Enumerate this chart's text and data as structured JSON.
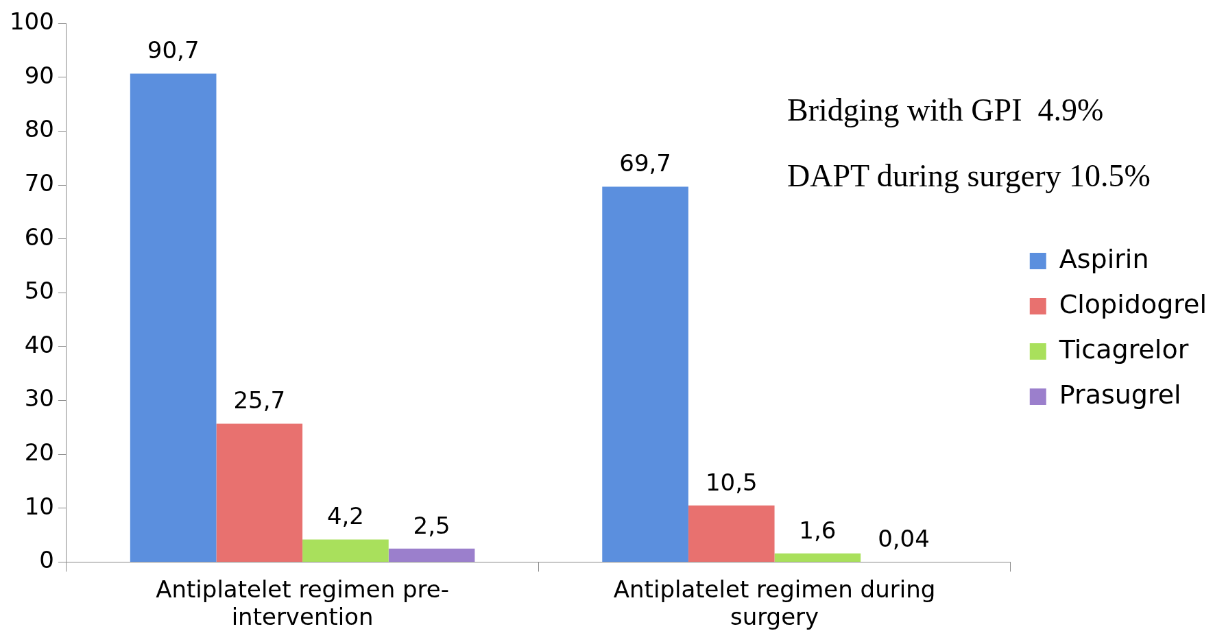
{
  "chart_data": {
    "type": "bar",
    "categories": [
      "Antiplatelet regimen pre-intervention",
      "Antiplatelet regimen during surgery"
    ],
    "series": [
      {
        "name": "Aspirin",
        "color": "#5b8fde",
        "values": [
          90.7,
          69.7
        ],
        "value_labels": [
          "90,7",
          "69,7"
        ]
      },
      {
        "name": "Clopidogrel",
        "color": "#e8716f",
        "values": [
          25.7,
          10.5
        ],
        "value_labels": [
          "25,7",
          "10,5"
        ]
      },
      {
        "name": "Ticagrelor",
        "color": "#a9e05c",
        "values": [
          4.2,
          1.6
        ],
        "value_labels": [
          "4,2",
          "1,6"
        ]
      },
      {
        "name": "Prasugrel",
        "color": "#9b7fcc",
        "values": [
          2.5,
          0.04
        ],
        "value_labels": [
          "2,5",
          "0,04"
        ]
      }
    ],
    "ylim": [
      0,
      100
    ],
    "yticks": [
      0,
      10,
      20,
      30,
      40,
      50,
      60,
      70,
      80,
      90,
      100
    ],
    "grid": false,
    "legend": "right",
    "annotations": [
      "Bridging with GPI  4.9%",
      "DAPT during surgery 10.5%"
    ]
  }
}
